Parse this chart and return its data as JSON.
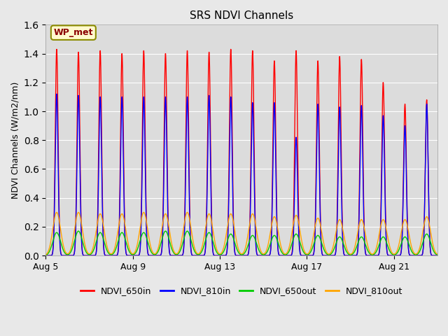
{
  "title": "SRS NDVI Channels",
  "ylabel": "NDVI Channels (W/m2/nm)",
  "annotation_text": "WP_met",
  "annotation_color": "#8B0000",
  "annotation_bg": "#FFFACD",
  "annotation_border": "#8B8B00",
  "ylim": [
    0.0,
    1.6
  ],
  "legend_labels": [
    "NDVI_650in",
    "NDVI_810in",
    "NDVI_650out",
    "NDVI_810out"
  ],
  "legend_colors": [
    "#FF0000",
    "#0000FF",
    "#00CC00",
    "#FFA500"
  ],
  "line_width": 1.0,
  "fig_bg": "#E8E8E8",
  "plot_bg": "#DCDCDC",
  "tick_labels": [
    "Aug 5",
    "Aug 9",
    "Aug 13",
    "Aug 17",
    "Aug 21"
  ],
  "num_days": 18,
  "peak_650in": [
    1.43,
    1.41,
    1.42,
    1.4,
    1.42,
    1.4,
    1.42,
    1.41,
    1.43,
    1.42,
    1.35,
    1.42,
    1.35,
    1.38,
    1.36,
    1.2,
    1.05,
    1.08
  ],
  "peak_810in": [
    1.12,
    1.11,
    1.1,
    1.1,
    1.1,
    1.1,
    1.1,
    1.11,
    1.1,
    1.06,
    1.06,
    0.82,
    1.05,
    1.03,
    1.04,
    0.97,
    0.9,
    1.05
  ],
  "peak_650out": [
    0.16,
    0.17,
    0.16,
    0.16,
    0.16,
    0.17,
    0.17,
    0.16,
    0.15,
    0.14,
    0.14,
    0.15,
    0.14,
    0.13,
    0.13,
    0.13,
    0.13,
    0.15
  ],
  "peak_810out": [
    0.3,
    0.3,
    0.29,
    0.29,
    0.3,
    0.29,
    0.3,
    0.29,
    0.29,
    0.29,
    0.27,
    0.28,
    0.26,
    0.25,
    0.25,
    0.25,
    0.25,
    0.27
  ],
  "extra_650in": 1.27,
  "extra_810in": 1.05,
  "extra_650out": 0.13,
  "extra_810out": 0.28
}
